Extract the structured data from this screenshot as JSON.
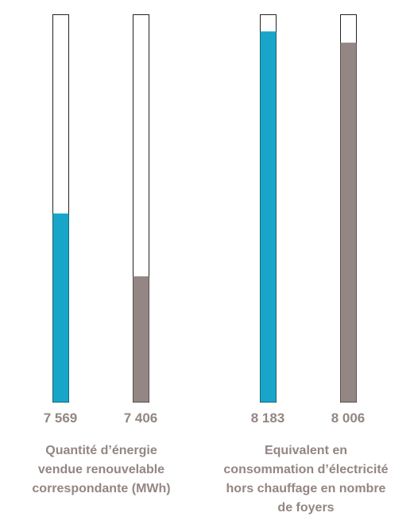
{
  "chart_data": {
    "type": "bar",
    "ylim": [
      0,
      1
    ],
    "groups": [
      {
        "label": "Quantité d’énergie\nvendue renouvelable\ncorrespondante (MWh)",
        "bars": [
          {
            "value_label": "7 569",
            "fill_fraction": 0.487,
            "color": "#17a6c9"
          },
          {
            "value_label": "7 406",
            "fill_fraction": 0.325,
            "color": "#938683"
          }
        ]
      },
      {
        "label": "Equivalent en\nconsommation d’électricité\nhors chauffage en nombre\nde foyers",
        "bars": [
          {
            "value_label": "8 183",
            "fill_fraction": 0.956,
            "color": "#17a6c9"
          },
          {
            "value_label": "8 006",
            "fill_fraction": 0.927,
            "color": "#938683"
          }
        ]
      }
    ],
    "grid": false,
    "legend": "none"
  },
  "colors": {
    "teal": "#17a6c9",
    "taupe": "#938683",
    "text": "#938683",
    "outline": "#222222"
  }
}
